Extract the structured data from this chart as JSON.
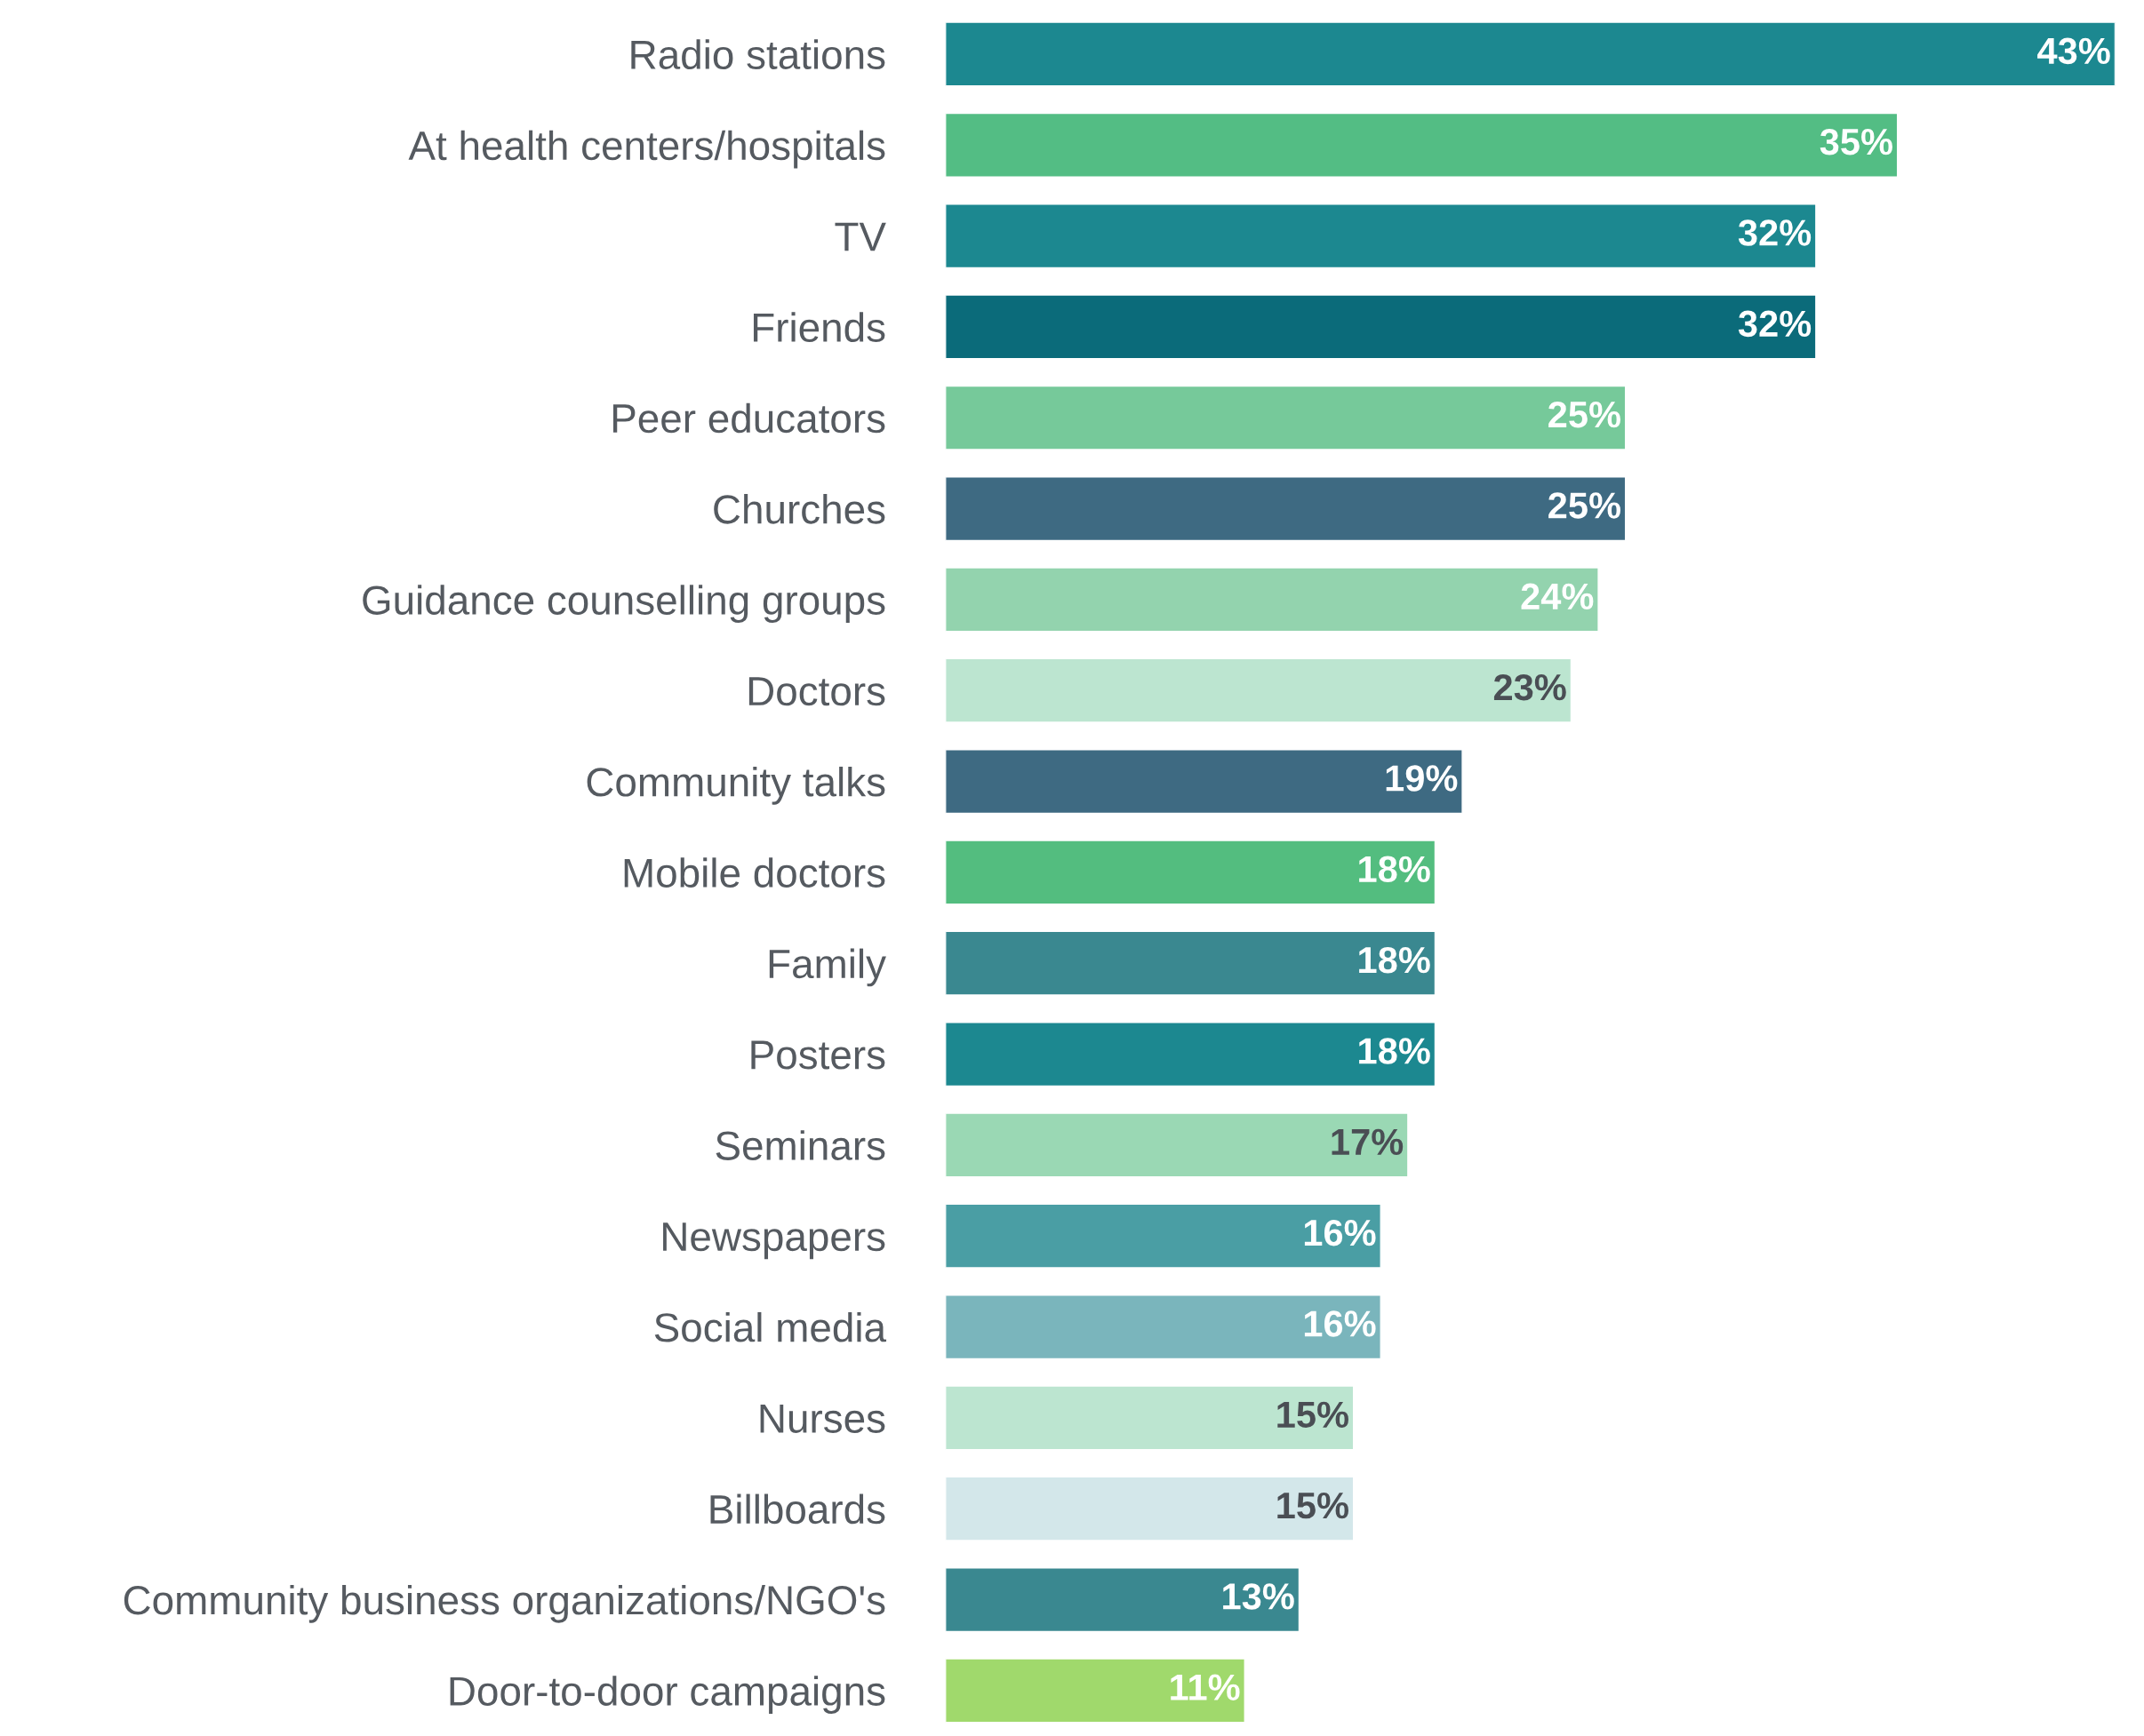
{
  "chart_data": {
    "type": "bar",
    "orientation": "horizontal",
    "grid": false,
    "legend": false,
    "tick_labels": "y",
    "categories": [
      "Radio stations",
      "At health centers/hospitals",
      "TV",
      "Friends",
      "Peer educators",
      "Churches",
      "Guidance counselling groups",
      "Doctors",
      "Community talks",
      "Mobile doctors",
      "Family",
      "Posters",
      "Seminars",
      "Newspapers",
      "Social media",
      "Nurses",
      "Billboards",
      "Community business organizations/NGO's",
      "Door-to-door campaigns"
    ],
    "values": [
      43,
      35,
      32,
      32,
      25,
      25,
      24,
      23,
      19,
      18,
      18,
      18,
      17,
      16,
      16,
      15,
      15,
      13,
      11
    ],
    "value_labels": [
      "43%",
      "35%",
      "32%",
      "32%",
      "25%",
      "25%",
      "24%",
      "23%",
      "19%",
      "18%",
      "18%",
      "18%",
      "17%",
      "16%",
      "16%",
      "15%",
      "15%",
      "13%",
      "11%"
    ],
    "colors": [
      "#1c8890",
      "#53bd84",
      "#1c8890",
      "#0b6b7a",
      "#76c99a",
      "#3e6a82",
      "#93d3ae",
      "#bce5d0",
      "#3e6a82",
      "#53bd7f",
      "#3a8890",
      "#1c8890",
      "#9ad8b4",
      "#4a9ea4",
      "#7ab5bc",
      "#bce5d0",
      "#d3e7ea",
      "#3a8890",
      "#a0d96c"
    ]
  }
}
